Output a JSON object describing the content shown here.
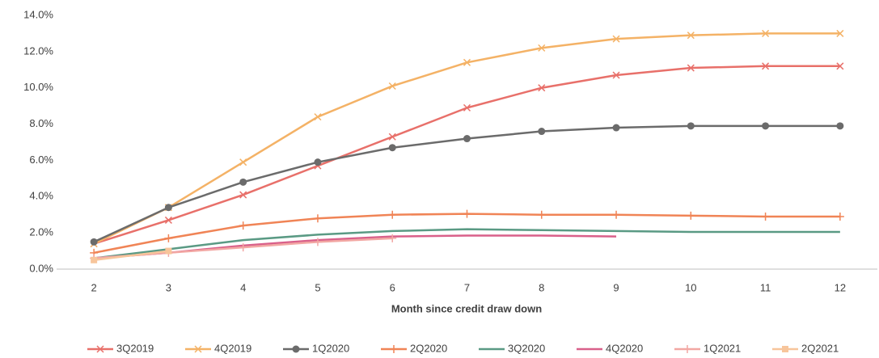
{
  "chart_data": {
    "type": "line",
    "x_label": "Month since credit draw down",
    "x": [
      2,
      3,
      4,
      5,
      6,
      7,
      8,
      9,
      10,
      11,
      12
    ],
    "xlim": [
      1.5,
      12.5
    ],
    "xticks": [
      2,
      3,
      4,
      5,
      6,
      7,
      8,
      9,
      10,
      11,
      12
    ],
    "ylim": [
      0,
      14
    ],
    "yticks": [
      {
        "value": 0,
        "label": "0.0%"
      },
      {
        "value": 2,
        "label": "2.0%"
      },
      {
        "value": 4,
        "label": "4.0%"
      },
      {
        "value": 6,
        "label": "6.0%"
      },
      {
        "value": 8,
        "label": "8.0%"
      },
      {
        "value": 10,
        "label": "10.0%"
      },
      {
        "value": 12,
        "label": "12.0%"
      },
      {
        "value": 14,
        "label": "14.0%"
      }
    ],
    "grid": false,
    "legend": "bottom",
    "series": [
      {
        "name": "3Q2019",
        "color": "#e8706a",
        "marker": "x",
        "values": [
          1.4,
          2.7,
          4.1,
          5.7,
          7.3,
          8.9,
          10.0,
          10.7,
          11.1,
          11.2,
          11.2
        ]
      },
      {
        "name": "4Q2019",
        "color": "#f4b266",
        "marker": "x",
        "values": [
          1.4,
          3.4,
          5.9,
          8.4,
          10.1,
          11.4,
          12.2,
          12.7,
          12.9,
          13.0,
          13.0
        ]
      },
      {
        "name": "1Q2020",
        "color": "#6b6b6b",
        "marker": "circle",
        "values": [
          1.5,
          3.4,
          4.8,
          5.9,
          6.7,
          7.2,
          7.6,
          7.8,
          7.9,
          7.9,
          7.9
        ]
      },
      {
        "name": "2Q2020",
        "color": "#f08456",
        "marker": "plus",
        "values": [
          0.9,
          1.7,
          2.4,
          2.8,
          3.0,
          3.05,
          3.0,
          3.0,
          2.95,
          2.9,
          2.9
        ]
      },
      {
        "name": "3Q2020",
        "color": "#5a9a84",
        "marker": "none",
        "values": [
          0.6,
          1.1,
          1.6,
          1.9,
          2.1,
          2.2,
          2.15,
          2.1,
          2.05,
          2.05,
          2.05
        ]
      },
      {
        "name": "4Q2020",
        "color": "#d9608a",
        "marker": "none",
        "values": [
          0.6,
          0.9,
          1.3,
          1.6,
          1.8,
          1.85,
          1.85,
          1.8,
          null,
          null,
          null
        ]
      },
      {
        "name": "1Q2021",
        "color": "#f2a7a3",
        "marker": "plus",
        "values": [
          0.6,
          0.9,
          1.2,
          1.5,
          1.7,
          null,
          null,
          null,
          null,
          null,
          null
        ]
      },
      {
        "name": "2Q2021",
        "color": "#f7c59b",
        "marker": "square",
        "values": [
          0.5,
          1.0,
          null,
          null,
          null,
          null,
          null,
          null,
          null,
          null,
          null
        ]
      }
    ]
  }
}
